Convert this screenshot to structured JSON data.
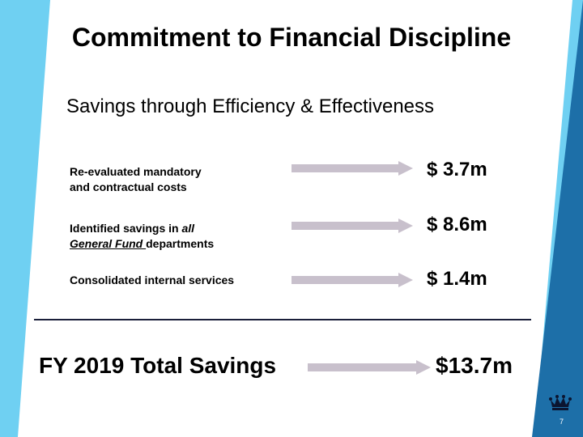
{
  "slide": {
    "title": "Commitment to Financial Discipline",
    "subtitle": "Savings through Efficiency & Effectiveness",
    "rows": [
      {
        "line1": "Re-evaluated mandatory",
        "line2": "and contractual costs",
        "amount": "$ 3.7m"
      },
      {
        "line1_prefix": "Identified savings in ",
        "line1_italic": "all",
        "line2_underlined": "General Fund ",
        "line2_suffix": "departments",
        "amount": "$ 8.6m"
      },
      {
        "line1": "Consolidated internal services",
        "amount": "$ 1.4m"
      }
    ],
    "total_label": "FY 2019 Total Savings",
    "total_value": "$13.7m",
    "page_number": "7"
  },
  "colors": {
    "left_band": "#6fd0f2",
    "right_band_light": "#6fd0f2",
    "right_band_dark": "#1d6fa8",
    "arrow": "#c8c0cc",
    "divider": "#1a1f3a"
  },
  "icons": {
    "logo": "crown-icon"
  }
}
